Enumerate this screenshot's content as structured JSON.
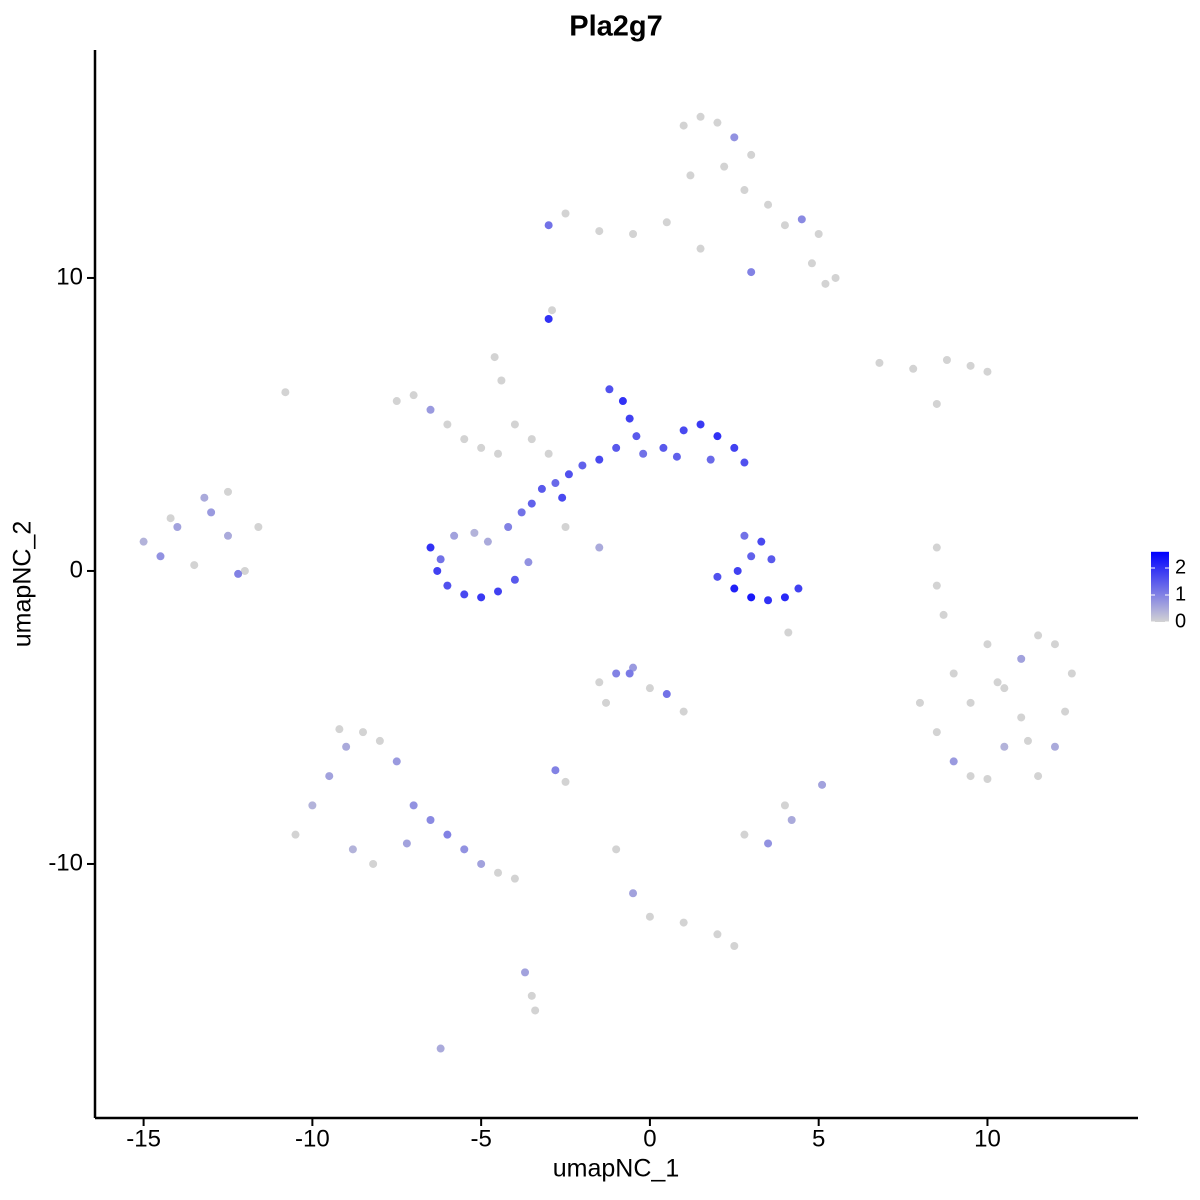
{
  "chart_data": {
    "type": "scatter",
    "title": "Pla2g7",
    "x_label": "umapNC_1",
    "y_label": "umapNC_2",
    "xlim": [
      -16.44,
      14.46
    ],
    "ylim": [
      -18.67,
      17.78
    ],
    "xticks": [
      -15,
      -10,
      -5,
      0,
      5,
      10
    ],
    "yticks": [
      -10,
      0,
      10
    ],
    "colors": [
      "#d3d3d3",
      "#0000ff"
    ],
    "clim": [
      0,
      2.6
    ],
    "color_ticks": [
      0,
      1,
      2
    ],
    "x": [
      1.0,
      1.5,
      2.0,
      2.5,
      3.0,
      1.2,
      2.2,
      2.8,
      3.5,
      4.0,
      4.5,
      5.0,
      5.5,
      4.8,
      5.2,
      -3.0,
      -2.5,
      -1.5,
      -0.5,
      0.5,
      -3.0,
      -2.9,
      1.5,
      3.0,
      6.8,
      7.8,
      8.8,
      9.5,
      10.0,
      8.5,
      -7.5,
      -7.0,
      -6.5,
      -6.0,
      -5.5,
      -5.0,
      -4.5,
      -4.0,
      -3.5,
      -3.0,
      -4.6,
      -4.4,
      -2.5,
      -1.5,
      -10.8,
      -6.5,
      -6.3,
      -6.0,
      -5.5,
      -5.0,
      -4.5,
      -4.0,
      -3.6,
      -6.2,
      -5.8,
      -5.2,
      -4.8,
      -4.2,
      -3.8,
      -3.5,
      -3.2,
      -2.8,
      -2.4,
      -2.0,
      -1.5,
      -1.0,
      -0.6,
      -0.8,
      -1.2,
      -0.2,
      0.4,
      1.0,
      1.5,
      2.0,
      2.5,
      2.8,
      1.8,
      0.8,
      -0.4,
      -2.6,
      2.0,
      2.5,
      3.0,
      3.5,
      4.0,
      4.4,
      3.0,
      3.3,
      2.8,
      3.6,
      2.6,
      4.1,
      -15.0,
      -14.5,
      -14.0,
      -13.5,
      -13.0,
      -12.5,
      -12.0,
      -13.2,
      -12.5,
      -11.6,
      -14.2,
      -12.2,
      8.0,
      8.5,
      9.0,
      9.5,
      10.0,
      10.5,
      11.0,
      11.5,
      12.0,
      12.5,
      9.0,
      10.0,
      11.0,
      12.0,
      9.5,
      10.5,
      11.5,
      10.3,
      11.2,
      12.3,
      -10.5,
      -10.0,
      -9.5,
      -9.0,
      -8.5,
      -8.0,
      -7.5,
      -7.0,
      -6.5,
      -6.0,
      -5.5,
      -5.0,
      -4.5,
      -4.0,
      -8.8,
      -8.2,
      -9.2,
      -7.2,
      -3.5,
      -3.4,
      -1.5,
      -1.0,
      -0.5,
      0.0,
      0.5,
      1.0,
      -1.3,
      -0.6,
      -2.8,
      -2.5,
      -1.0,
      -0.5,
      0.0,
      1.0,
      2.0,
      2.5,
      3.5,
      4.0,
      5.1,
      8.5,
      -3.7,
      -6.2,
      2.8,
      4.2,
      8.5,
      8.7
    ],
    "y": [
      15.2,
      15.5,
      15.3,
      14.8,
      14.2,
      13.5,
      13.8,
      13.0,
      12.5,
      11.8,
      12.0,
      11.5,
      10.0,
      10.5,
      9.8,
      11.8,
      12.2,
      11.6,
      11.5,
      11.9,
      8.6,
      8.9,
      11.0,
      10.2,
      7.1,
      6.9,
      7.2,
      7.0,
      6.8,
      5.7,
      5.8,
      6.0,
      5.5,
      5.0,
      4.5,
      4.2,
      4.0,
      5.0,
      4.5,
      4.0,
      7.3,
      6.5,
      1.5,
      0.8,
      6.1,
      0.8,
      0.0,
      -0.5,
      -0.8,
      -0.9,
      -0.7,
      -0.3,
      0.3,
      0.4,
      1.2,
      1.3,
      1.0,
      1.5,
      2.0,
      2.3,
      2.8,
      3.0,
      3.3,
      3.6,
      3.8,
      4.2,
      5.2,
      5.8,
      6.2,
      4.0,
      4.2,
      4.8,
      5.0,
      4.6,
      4.2,
      3.7,
      3.8,
      3.9,
      4.6,
      2.5,
      -0.2,
      -0.6,
      -0.9,
      -1.0,
      -0.9,
      -0.6,
      0.5,
      1.0,
      1.2,
      0.4,
      0.0,
      -2.1,
      1.0,
      0.5,
      1.5,
      0.2,
      2.0,
      1.2,
      0.0,
      2.5,
      2.7,
      1.5,
      1.8,
      -0.1,
      -4.5,
      -5.5,
      -6.5,
      -7.0,
      -7.1,
      -4.0,
      -3.0,
      -2.2,
      -2.5,
      -3.5,
      -3.5,
      -2.5,
      -5.0,
      -6.0,
      -4.5,
      -6.0,
      -7.0,
      -3.8,
      -5.8,
      -4.8,
      -9.0,
      -8.0,
      -7.0,
      -6.0,
      -5.5,
      -5.8,
      -6.5,
      -8.0,
      -8.5,
      -9.0,
      -9.5,
      -10.0,
      -10.3,
      -10.5,
      -9.5,
      -10.0,
      -5.4,
      -9.3,
      -14.5,
      -15.0,
      -3.8,
      -3.5,
      -3.3,
      -4.0,
      -4.2,
      -4.8,
      -4.5,
      -3.5,
      -6.8,
      -7.2,
      -9.5,
      -11.0,
      -11.8,
      -12.0,
      -12.4,
      -12.8,
      -9.3,
      -8.0,
      -7.3,
      -0.5,
      -13.7,
      -16.3,
      -9.0,
      -8.5,
      0.8,
      -1.5
    ],
    "values": [
      0,
      0,
      0,
      0.8,
      0,
      0,
      0,
      0,
      0,
      0,
      0.9,
      0,
      0,
      0,
      0,
      1.2,
      0,
      0,
      0,
      0,
      2.0,
      0,
      0,
      1.0,
      0,
      0,
      0,
      0,
      0,
      0,
      0,
      0,
      0.7,
      0,
      0,
      0,
      0,
      0,
      0,
      0,
      0,
      0,
      0,
      0.5,
      0,
      2.0,
      1.8,
      1.6,
      1.7,
      1.9,
      1.8,
      1.5,
      0.8,
      1.2,
      0.6,
      0.4,
      0.5,
      1.0,
      1.2,
      1.4,
      1.5,
      1.3,
      1.6,
      1.4,
      1.7,
      1.5,
      1.8,
      2.0,
      1.6,
      1.2,
      1.5,
      1.7,
      1.9,
      2.0,
      1.8,
      1.6,
      1.3,
      1.4,
      1.5,
      1.7,
      1.6,
      2.2,
      2.3,
      2.0,
      2.1,
      1.8,
      1.4,
      1.7,
      1.2,
      1.5,
      1.8,
      0,
      0.4,
      0.8,
      0.6,
      0,
      0.7,
      0.5,
      0,
      0.5,
      0,
      0,
      0,
      1.0,
      0,
      0,
      0.7,
      0,
      0,
      0,
      0.6,
      0,
      0,
      0,
      0,
      0,
      0,
      0.5,
      0,
      0.4,
      0,
      0,
      0,
      0,
      0,
      0.4,
      0.6,
      0.5,
      0,
      0,
      0.7,
      0.8,
      0.9,
      1.0,
      0.8,
      0.6,
      0,
      0,
      0.4,
      0,
      0,
      0.6,
      0,
      0,
      0,
      1.0,
      0.7,
      0,
      1.2,
      0,
      0,
      1.1,
      1.0,
      0,
      0,
      0.6,
      0,
      0,
      0,
      0,
      0.8,
      0,
      0.6,
      0,
      0.6,
      0.5,
      0,
      0.5,
      0,
      0
    ]
  }
}
